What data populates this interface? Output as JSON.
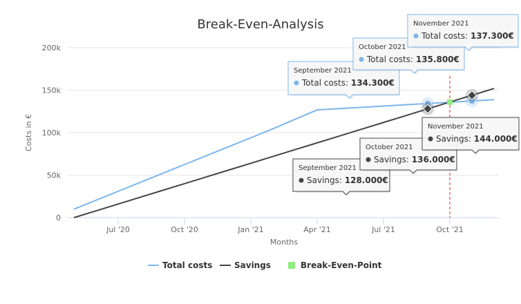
{
  "chart_data": {
    "type": "line",
    "title": "Break-Even-Analysis",
    "xlabel": "Months",
    "ylabel": "Costs in €",
    "x": [
      "2020-05",
      "2020-06",
      "2020-07",
      "2020-08",
      "2020-09",
      "2020-10",
      "2020-11",
      "2020-12",
      "2021-01",
      "2021-02",
      "2021-03",
      "2021-04",
      "2021-05",
      "2021-06",
      "2021-07",
      "2021-08",
      "2021-09",
      "2021-10",
      "2021-11",
      "2021-12"
    ],
    "x_ticks": [
      "Jul '20",
      "Oct '20",
      "Jan '21",
      "Apr '21",
      "Jul '21",
      "Oct '21"
    ],
    "y_ticks": [
      "0",
      "50k",
      "100k",
      "150k",
      "200k"
    ],
    "ylim": [
      0,
      200000
    ],
    "grid": true,
    "legend_placement": "bottom",
    "series": [
      {
        "name": "Total costs",
        "color": "#7cb5ec",
        "values": [
          10000,
          20500,
          31000,
          41500,
          52000,
          62500,
          73000,
          83500,
          94000,
          104500,
          115700,
          126800,
          128300,
          129800,
          131300,
          132800,
          134300,
          135800,
          137300,
          138800
        ]
      },
      {
        "name": "Savings",
        "color": "#434348",
        "values": [
          0,
          8000,
          16000,
          24000,
          32000,
          40000,
          48000,
          56000,
          64000,
          72000,
          80000,
          88000,
          96000,
          104000,
          112000,
          120000,
          128000,
          136000,
          144000,
          152000
        ]
      },
      {
        "name": "Break-Even-Point",
        "color": "#90ed7d",
        "points": [
          {
            "x": "2021-10",
            "y": 136000
          }
        ]
      }
    ],
    "plot_line": {
      "x": "2021-10",
      "color": "#e0201b",
      "style": "dashed"
    },
    "tooltips": [
      {
        "date": "September 2021",
        "label": "Total costs: ",
        "value": "134.300€",
        "series": 0
      },
      {
        "date": "October 2021",
        "label": "Total costs: ",
        "value": "135.800€",
        "series": 0
      },
      {
        "date": "November 2021",
        "label": "Total costs: ",
        "value": "137.300€",
        "series": 0
      },
      {
        "date": "September 2021",
        "label": "Savings: ",
        "value": "128.000€",
        "series": 1
      },
      {
        "date": "October 2021",
        "label": "Savings: ",
        "value": "136.000€",
        "series": 1
      },
      {
        "date": "November 2021",
        "label": "Savings: ",
        "value": "144.000€",
        "series": 1
      }
    ]
  }
}
